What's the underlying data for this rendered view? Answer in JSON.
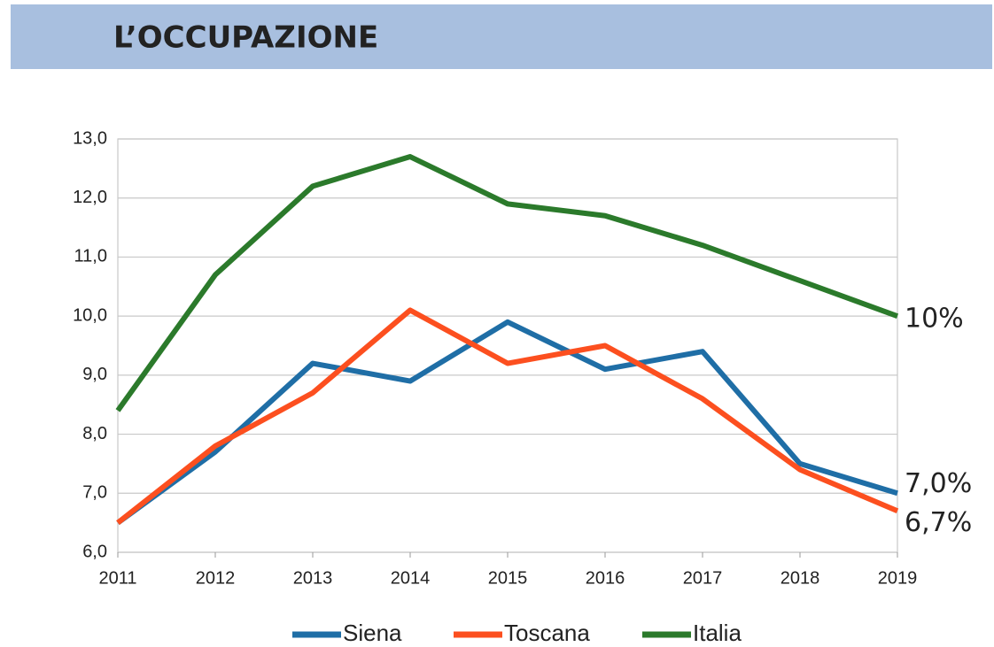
{
  "chart_data": {
    "type": "line",
    "title": "L’OCCUPAZIONE",
    "x": [
      2011,
      2012,
      2013,
      2014,
      2015,
      2016,
      2017,
      2018,
      2019
    ],
    "xlim": [
      2011,
      2019
    ],
    "xticks": [
      2011,
      2012,
      2013,
      2014,
      2015,
      2016,
      2017,
      2018,
      2019
    ],
    "ylim": [
      6,
      13
    ],
    "yticks": [
      {
        "value": 6,
        "label": "6,0"
      },
      {
        "value": 7,
        "label": "7,0"
      },
      {
        "value": 8,
        "label": "8,0"
      },
      {
        "value": 9,
        "label": "9,0"
      },
      {
        "value": 10,
        "label": "10,0"
      },
      {
        "value": 11,
        "label": "11,0"
      },
      {
        "value": 12,
        "label": "12,0"
      },
      {
        "value": 13,
        "label": "13,0"
      }
    ],
    "grid": true,
    "legend": "bottom",
    "series": [
      {
        "name": "Siena",
        "color": "#1f6ea6",
        "values": [
          6.5,
          7.7,
          9.2,
          8.9,
          9.9,
          9.1,
          9.4,
          7.5,
          7.0
        ],
        "value_labels": [
          null,
          null,
          null,
          null,
          null,
          null,
          null,
          null,
          "7,0%"
        ]
      },
      {
        "name": "Toscana",
        "color": "#fc4f1f",
        "values": [
          6.5,
          7.8,
          8.7,
          10.1,
          9.2,
          9.5,
          8.6,
          7.4,
          6.7
        ],
        "value_labels": [
          null,
          null,
          null,
          null,
          null,
          null,
          null,
          null,
          "6,7%"
        ]
      },
      {
        "name": "Italia",
        "color": "#2b7a2b",
        "values": [
          8.4,
          10.7,
          12.2,
          12.7,
          11.9,
          11.7,
          11.2,
          10.6,
          10
        ],
        "value_labels": [
          null,
          null,
          null,
          null,
          null,
          null,
          null,
          null,
          "10%"
        ]
      }
    ]
  }
}
